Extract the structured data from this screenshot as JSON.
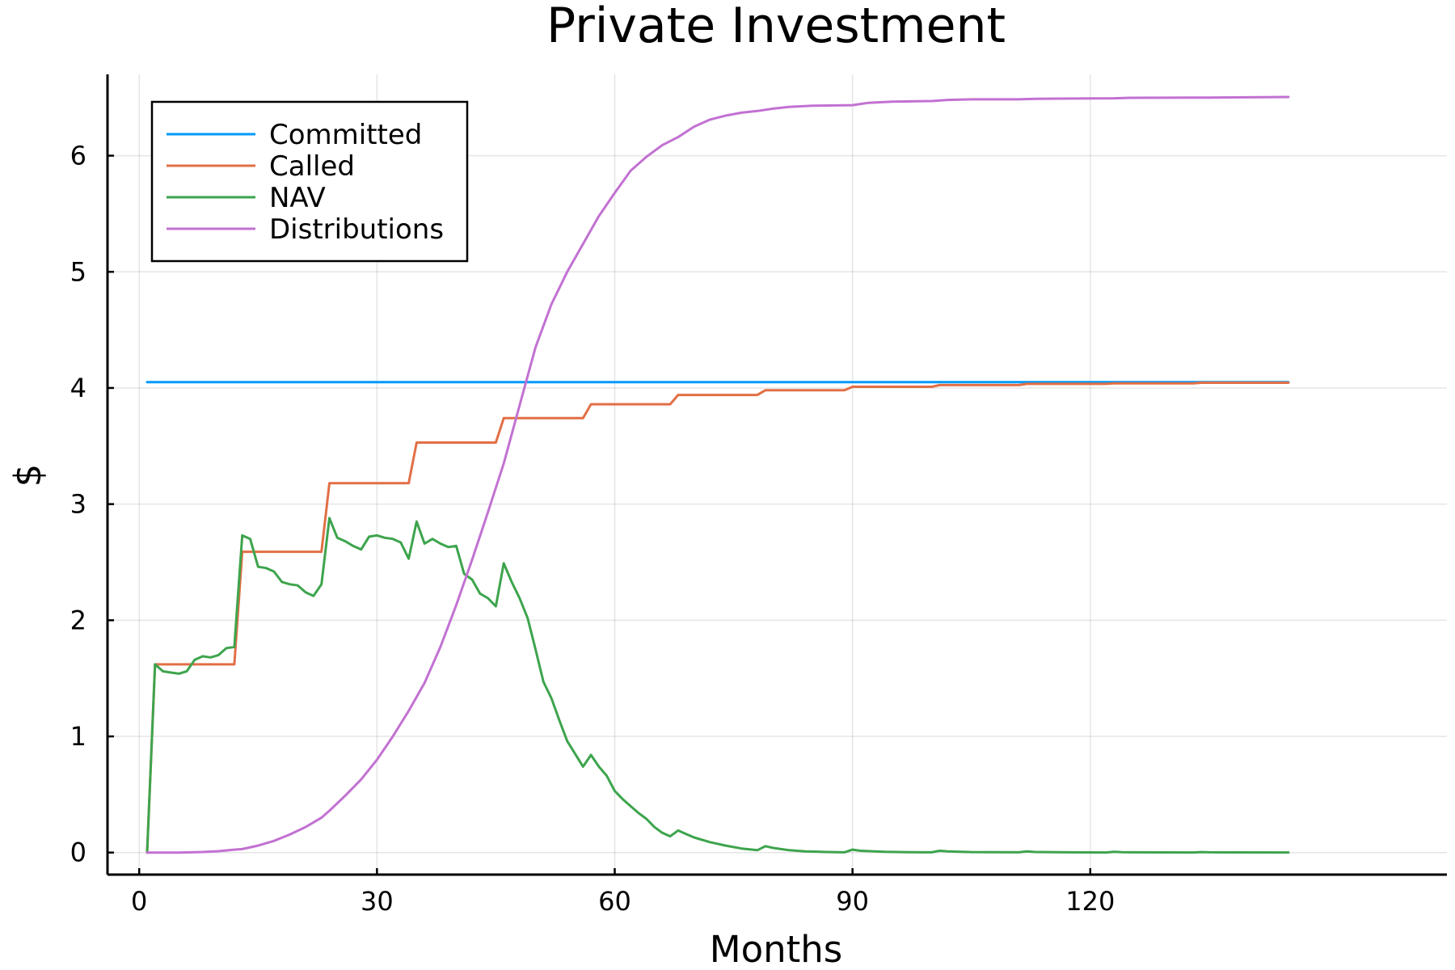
{
  "chart_data": {
    "type": "line",
    "title": "Private Investment",
    "xlabel": "Months",
    "ylabel": "$",
    "xlim": [
      -4,
      165
    ],
    "ylim": [
      -0.19,
      6.7
    ],
    "xticks": [
      0,
      30,
      60,
      90,
      120
    ],
    "yticks": [
      0,
      1,
      2,
      3,
      4,
      5,
      6
    ],
    "grid": true,
    "legend_position": "top-left",
    "series": [
      {
        "name": "Committed",
        "color": "#009af9",
        "points": [
          [
            1,
            4.05
          ],
          [
            145,
            4.05
          ]
        ]
      },
      {
        "name": "Called",
        "color": "#e26f46",
        "points": [
          [
            1,
            0
          ],
          [
            2,
            1.62
          ],
          [
            12,
            1.62
          ],
          [
            13,
            2.59
          ],
          [
            23,
            2.59
          ],
          [
            24,
            3.18
          ],
          [
            34,
            3.18
          ],
          [
            35,
            3.53
          ],
          [
            45,
            3.53
          ],
          [
            46,
            3.74
          ],
          [
            56,
            3.74
          ],
          [
            57,
            3.86
          ],
          [
            67,
            3.86
          ],
          [
            68,
            3.94
          ],
          [
            78,
            3.94
          ],
          [
            79,
            3.98
          ],
          [
            89,
            3.98
          ],
          [
            90,
            4.01
          ],
          [
            100,
            4.01
          ],
          [
            101,
            4.025
          ],
          [
            111,
            4.025
          ],
          [
            112,
            4.035
          ],
          [
            122,
            4.035
          ],
          [
            123,
            4.04
          ],
          [
            133,
            4.04
          ],
          [
            134,
            4.045
          ],
          [
            145,
            4.045
          ]
        ]
      },
      {
        "name": "NAV",
        "color": "#3da44d",
        "points": [
          [
            1,
            0
          ],
          [
            2,
            1.62
          ],
          [
            3,
            1.56
          ],
          [
            4,
            1.55
          ],
          [
            5,
            1.54
          ],
          [
            6,
            1.56
          ],
          [
            7,
            1.66
          ],
          [
            8,
            1.69
          ],
          [
            9,
            1.68
          ],
          [
            10,
            1.7
          ],
          [
            11,
            1.76
          ],
          [
            12,
            1.77
          ],
          [
            13,
            2.73
          ],
          [
            14,
            2.7
          ],
          [
            15,
            2.46
          ],
          [
            16,
            2.45
          ],
          [
            17,
            2.42
          ],
          [
            18,
            2.33
          ],
          [
            19,
            2.31
          ],
          [
            20,
            2.3
          ],
          [
            21,
            2.24
          ],
          [
            22,
            2.21
          ],
          [
            23,
            2.31
          ],
          [
            24,
            2.88
          ],
          [
            25,
            2.71
          ],
          [
            26,
            2.68
          ],
          [
            27,
            2.64
          ],
          [
            28,
            2.61
          ],
          [
            29,
            2.72
          ],
          [
            30,
            2.73
          ],
          [
            31,
            2.71
          ],
          [
            32,
            2.7
          ],
          [
            33,
            2.67
          ],
          [
            34,
            2.53
          ],
          [
            35,
            2.85
          ],
          [
            36,
            2.66
          ],
          [
            37,
            2.7
          ],
          [
            38,
            2.66
          ],
          [
            39,
            2.63
          ],
          [
            40,
            2.64
          ],
          [
            41,
            2.4
          ],
          [
            42,
            2.35
          ],
          [
            43,
            2.23
          ],
          [
            44,
            2.19
          ],
          [
            45,
            2.12
          ],
          [
            46,
            2.49
          ],
          [
            47,
            2.33
          ],
          [
            48,
            2.19
          ],
          [
            49,
            2.02
          ],
          [
            50,
            1.75
          ],
          [
            51,
            1.47
          ],
          [
            52,
            1.33
          ],
          [
            53,
            1.14
          ],
          [
            54,
            0.96
          ],
          [
            55,
            0.85
          ],
          [
            56,
            0.74
          ],
          [
            57,
            0.84
          ],
          [
            58,
            0.74
          ],
          [
            59,
            0.66
          ],
          [
            60,
            0.53
          ],
          [
            61,
            0.46
          ],
          [
            62,
            0.4
          ],
          [
            63,
            0.34
          ],
          [
            64,
            0.29
          ],
          [
            65,
            0.22
          ],
          [
            66,
            0.17
          ],
          [
            67,
            0.14
          ],
          [
            68,
            0.19
          ],
          [
            69,
            0.16
          ],
          [
            70,
            0.13
          ],
          [
            72,
            0.09
          ],
          [
            74,
            0.06
          ],
          [
            76,
            0.035
          ],
          [
            78,
            0.02
          ],
          [
            79,
            0.055
          ],
          [
            80,
            0.04
          ],
          [
            82,
            0.02
          ],
          [
            84,
            0.01
          ],
          [
            86,
            0.006
          ],
          [
            88,
            0.003
          ],
          [
            89,
            0.002
          ],
          [
            90,
            0.025
          ],
          [
            91,
            0.015
          ],
          [
            94,
            0.006
          ],
          [
            97,
            0.003
          ],
          [
            100,
            0.002
          ],
          [
            101,
            0.015
          ],
          [
            102,
            0.01
          ],
          [
            105,
            0.004
          ],
          [
            111,
            0.002
          ],
          [
            112,
            0.01
          ],
          [
            113,
            0.005
          ],
          [
            117,
            0.002
          ],
          [
            122,
            0.001
          ],
          [
            123,
            0.006
          ],
          [
            124,
            0.003
          ],
          [
            133,
            0.001
          ],
          [
            134,
            0.004
          ],
          [
            135,
            0.002
          ],
          [
            145,
            0.001
          ]
        ]
      },
      {
        "name": "Distributions",
        "color": "#c271d2",
        "points": [
          [
            1,
            0
          ],
          [
            5,
            0.0
          ],
          [
            8,
            0.005
          ],
          [
            10,
            0.012
          ],
          [
            12,
            0.025
          ],
          [
            13,
            0.03
          ],
          [
            15,
            0.06
          ],
          [
            17,
            0.1
          ],
          [
            19,
            0.155
          ],
          [
            21,
            0.22
          ],
          [
            23,
            0.3
          ],
          [
            24,
            0.36
          ],
          [
            26,
            0.49
          ],
          [
            28,
            0.63
          ],
          [
            30,
            0.8
          ],
          [
            32,
            1.0
          ],
          [
            34,
            1.22
          ],
          [
            36,
            1.46
          ],
          [
            38,
            1.77
          ],
          [
            40,
            2.13
          ],
          [
            42,
            2.52
          ],
          [
            44,
            2.93
          ],
          [
            46,
            3.35
          ],
          [
            48,
            3.85
          ],
          [
            50,
            4.35
          ],
          [
            52,
            4.72
          ],
          [
            54,
            5.0
          ],
          [
            56,
            5.24
          ],
          [
            58,
            5.48
          ],
          [
            60,
            5.68
          ],
          [
            62,
            5.87
          ],
          [
            64,
            5.99
          ],
          [
            66,
            6.09
          ],
          [
            68,
            6.16
          ],
          [
            70,
            6.25
          ],
          [
            72,
            6.31
          ],
          [
            74,
            6.345
          ],
          [
            76,
            6.37
          ],
          [
            78,
            6.385
          ],
          [
            80,
            6.405
          ],
          [
            82,
            6.42
          ],
          [
            85,
            6.43
          ],
          [
            90,
            6.435
          ],
          [
            92,
            6.455
          ],
          [
            95,
            6.465
          ],
          [
            100,
            6.47
          ],
          [
            102,
            6.48
          ],
          [
            105,
            6.485
          ],
          [
            111,
            6.485
          ],
          [
            113,
            6.49
          ],
          [
            118,
            6.492
          ],
          [
            123,
            6.494
          ],
          [
            125,
            6.498
          ],
          [
            133,
            6.5
          ],
          [
            135,
            6.5
          ],
          [
            145,
            6.505
          ]
        ]
      }
    ]
  }
}
